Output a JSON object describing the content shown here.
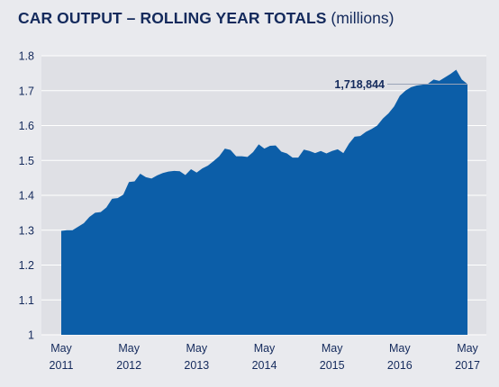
{
  "title": {
    "main": "CAR OUTPUT – ROLLING YEAR TOTALS",
    "unit": "(millions)"
  },
  "colors": {
    "area_fill": "#0c5ea8",
    "plot_bg": "#dfe0e5",
    "frame_bg": "#e9eaee",
    "gridline": "#ffffff",
    "text": "#142a5c"
  },
  "chart_data": {
    "type": "area",
    "title": "CAR OUTPUT – ROLLING YEAR TOTALS (millions)",
    "xlabel": "",
    "ylabel": "",
    "ylim": [
      1,
      1.8
    ],
    "yticks": [
      "1",
      "1.1",
      "1.2",
      "1.3",
      "1.4",
      "1.5",
      "1.6",
      "1.7",
      "1.8"
    ],
    "xticks": [
      {
        "month": "May",
        "year": "2011"
      },
      {
        "month": "May",
        "year": "2012"
      },
      {
        "month": "May",
        "year": "2013"
      },
      {
        "month": "May",
        "year": "2014"
      },
      {
        "month": "May",
        "year": "2015"
      },
      {
        "month": "May",
        "year": "2016"
      },
      {
        "month": "May",
        "year": "2017"
      }
    ],
    "grid": true,
    "x_start": "May 2011",
    "x_end": "May 2017",
    "values": [
      1.298,
      1.3,
      1.3,
      1.31,
      1.32,
      1.338,
      1.35,
      1.352,
      1.365,
      1.39,
      1.392,
      1.402,
      1.438,
      1.44,
      1.462,
      1.452,
      1.448,
      1.457,
      1.464,
      1.468,
      1.47,
      1.469,
      1.458,
      1.475,
      1.465,
      1.477,
      1.485,
      1.498,
      1.512,
      1.534,
      1.53,
      1.512,
      1.512,
      1.51,
      1.524,
      1.546,
      1.534,
      1.542,
      1.543,
      1.525,
      1.52,
      1.508,
      1.508,
      1.531,
      1.527,
      1.521,
      1.527,
      1.52,
      1.527,
      1.532,
      1.521,
      1.548,
      1.568,
      1.57,
      1.582,
      1.59,
      1.6,
      1.62,
      1.635,
      1.655,
      1.685,
      1.7,
      1.71,
      1.715,
      1.717,
      1.72,
      1.732,
      1.728,
      1.738,
      1.748,
      1.76,
      1.732,
      1.719
    ],
    "annotation": {
      "label": "1,718,844",
      "value": 1.718844
    }
  }
}
